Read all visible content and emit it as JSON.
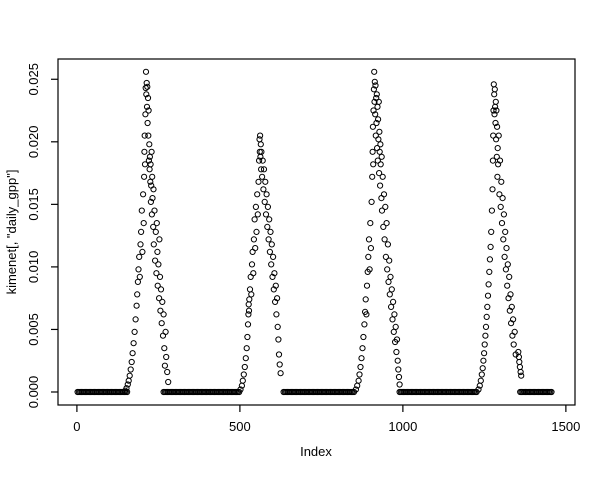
{
  "figure": {
    "background": "#ffffff",
    "foreground": "#000000"
  },
  "chart_data": {
    "type": "scatter",
    "title": "",
    "xlabel": "Index",
    "ylabel": "kimenet[, \"daily_gpp\"]",
    "series_name": "daily_gpp",
    "marker": "open-circle",
    "marker_color": "#000000",
    "grid": false,
    "legend": "none",
    "x_tick_values": [
      0,
      500,
      1000,
      1500
    ],
    "x_tick_labels": [
      "0",
      "500",
      "1000",
      "1500"
    ],
    "y_tick_values": [
      0,
      0.005,
      0.01,
      0.015,
      0.02,
      0.025
    ],
    "y_tick_labels": [
      "0.000",
      "0.005",
      "0.010",
      "0.015",
      "0.020",
      "0.025"
    ],
    "xlim": [
      -58,
      1528
    ],
    "ylim": [
      -0.00104,
      0.02662
    ],
    "zero_run_step": 4,
    "zero_runs": [
      [
        2,
        154
      ],
      [
        266,
        498
      ],
      [
        634,
        852
      ],
      [
        990,
        1228
      ],
      [
        1360,
        1456
      ]
    ],
    "points": [
      [
        148,
        0.0001
      ],
      [
        152,
        0.0003
      ],
      [
        156,
        0.0006
      ],
      [
        159,
        0.0009
      ],
      [
        162,
        0.0013
      ],
      [
        165,
        0.0018
      ],
      [
        168,
        0.0024
      ],
      [
        171,
        0.0031
      ],
      [
        174,
        0.0039
      ],
      [
        177,
        0.0048
      ],
      [
        180,
        0.0058
      ],
      [
        183,
        0.0069
      ],
      [
        185,
        0.0078
      ],
      [
        187,
        0.0088
      ],
      [
        189,
        0.0098
      ],
      [
        191,
        0.0108
      ],
      [
        193,
        0.0092
      ],
      [
        195,
        0.0118
      ],
      [
        197,
        0.0128
      ],
      [
        199,
        0.0145
      ],
      [
        201,
        0.0112
      ],
      [
        203,
        0.0158
      ],
      [
        205,
        0.0135
      ],
      [
        206,
        0.0172
      ],
      [
        207,
        0.0192
      ],
      [
        208,
        0.0205
      ],
      [
        209,
        0.0182
      ],
      [
        210,
        0.0222
      ],
      [
        211,
        0.0243
      ],
      [
        212,
        0.0256
      ],
      [
        213,
        0.0238
      ],
      [
        214,
        0.0247
      ],
      [
        215,
        0.0228
      ],
      [
        216,
        0.0244
      ],
      [
        217,
        0.0215
      ],
      [
        218,
        0.0235
      ],
      [
        219,
        0.0205
      ],
      [
        220,
        0.0225
      ],
      [
        221,
        0.0185
      ],
      [
        222,
        0.0198
      ],
      [
        223,
        0.0178
      ],
      [
        224,
        0.0188
      ],
      [
        225,
        0.0168
      ],
      [
        226,
        0.0182
      ],
      [
        227,
        0.0152
      ],
      [
        228,
        0.0165
      ],
      [
        229,
        0.0192
      ],
      [
        230,
        0.0142
      ],
      [
        231,
        0.0172
      ],
      [
        232,
        0.0155
      ],
      [
        234,
        0.0132
      ],
      [
        235,
        0.0162
      ],
      [
        236,
        0.0118
      ],
      [
        238,
        0.0145
      ],
      [
        240,
        0.0105
      ],
      [
        242,
        0.0128
      ],
      [
        244,
        0.0095
      ],
      [
        245,
        0.0135
      ],
      [
        247,
        0.0112
      ],
      [
        248,
        0.0085
      ],
      [
        250,
        0.0102
      ],
      [
        252,
        0.0075
      ],
      [
        253,
        0.0122
      ],
      [
        255,
        0.0092
      ],
      [
        256,
        0.0065
      ],
      [
        258,
        0.0082
      ],
      [
        260,
        0.0055
      ],
      [
        262,
        0.0072
      ],
      [
        264,
        0.0045
      ],
      [
        266,
        0.0062
      ],
      [
        268,
        0.0035
      ],
      [
        270,
        0.0021
      ],
      [
        272,
        0.0048
      ],
      [
        274,
        0.0028
      ],
      [
        277,
        0.0016
      ],
      [
        280,
        0.0008
      ],
      [
        502,
        0.0002
      ],
      [
        506,
        0.0005
      ],
      [
        509,
        0.0009
      ],
      [
        512,
        0.0014
      ],
      [
        515,
        0.002
      ],
      [
        518,
        0.0027
      ],
      [
        521,
        0.0035
      ],
      [
        523,
        0.0044
      ],
      [
        525,
        0.0054
      ],
      [
        526,
        0.0062
      ],
      [
        527,
        0.007
      ],
      [
        528,
        0.0065
      ],
      [
        529,
        0.0074
      ],
      [
        531,
        0.0082
      ],
      [
        533,
        0.0092
      ],
      [
        535,
        0.0078
      ],
      [
        537,
        0.0102
      ],
      [
        539,
        0.0112
      ],
      [
        541,
        0.0095
      ],
      [
        543,
        0.0122
      ],
      [
        545,
        0.0138
      ],
      [
        547,
        0.0115
      ],
      [
        549,
        0.0148
      ],
      [
        551,
        0.0128
      ],
      [
        553,
        0.0158
      ],
      [
        555,
        0.0142
      ],
      [
        557,
        0.0168
      ],
      [
        559,
        0.0185
      ],
      [
        560,
        0.0202
      ],
      [
        561,
        0.0192
      ],
      [
        562,
        0.0205
      ],
      [
        563,
        0.0188
      ],
      [
        564,
        0.0198
      ],
      [
        565,
        0.0178
      ],
      [
        566,
        0.0192
      ],
      [
        568,
        0.0172
      ],
      [
        570,
        0.0185
      ],
      [
        572,
        0.0162
      ],
      [
        574,
        0.0178
      ],
      [
        576,
        0.0152
      ],
      [
        578,
        0.0168
      ],
      [
        580,
        0.0142
      ],
      [
        582,
        0.0158
      ],
      [
        584,
        0.0132
      ],
      [
        586,
        0.0148
      ],
      [
        588,
        0.0122
      ],
      [
        590,
        0.0138
      ],
      [
        592,
        0.0112
      ],
      [
        594,
        0.0128
      ],
      [
        596,
        0.0102
      ],
      [
        598,
        0.0118
      ],
      [
        600,
        0.0092
      ],
      [
        602,
        0.0108
      ],
      [
        604,
        0.0082
      ],
      [
        606,
        0.0095
      ],
      [
        608,
        0.0072
      ],
      [
        610,
        0.0085
      ],
      [
        612,
        0.0062
      ],
      [
        614,
        0.0075
      ],
      [
        616,
        0.0052
      ],
      [
        618,
        0.0042
      ],
      [
        620,
        0.003
      ],
      [
        622,
        0.0022
      ],
      [
        625,
        0.0015
      ],
      [
        856,
        0.0002
      ],
      [
        860,
        0.0005
      ],
      [
        864,
        0.0009
      ],
      [
        867,
        0.0014
      ],
      [
        870,
        0.002
      ],
      [
        873,
        0.0027
      ],
      [
        876,
        0.0035
      ],
      [
        879,
        0.0044
      ],
      [
        882,
        0.0054
      ],
      [
        884,
        0.0064
      ],
      [
        886,
        0.0074
      ],
      [
        888,
        0.0062
      ],
      [
        890,
        0.0085
      ],
      [
        892,
        0.0096
      ],
      [
        894,
        0.0108
      ],
      [
        896,
        0.0122
      ],
      [
        898,
        0.0098
      ],
      [
        900,
        0.0135
      ],
      [
        902,
        0.0115
      ],
      [
        904,
        0.0152
      ],
      [
        906,
        0.0172
      ],
      [
        907,
        0.0192
      ],
      [
        908,
        0.0212
      ],
      [
        909,
        0.0182
      ],
      [
        910,
        0.0225
      ],
      [
        911,
        0.0242
      ],
      [
        912,
        0.0256
      ],
      [
        913,
        0.0232
      ],
      [
        914,
        0.0248
      ],
      [
        915,
        0.0222
      ],
      [
        916,
        0.0245
      ],
      [
        917,
        0.0205
      ],
      [
        918,
        0.0235
      ],
      [
        919,
        0.0215
      ],
      [
        920,
        0.0238
      ],
      [
        921,
        0.0195
      ],
      [
        922,
        0.0228
      ],
      [
        923,
        0.0185
      ],
      [
        924,
        0.0218
      ],
      [
        925,
        0.0202
      ],
      [
        926,
        0.0232
      ],
      [
        927,
        0.0175
      ],
      [
        928,
        0.0208
      ],
      [
        929,
        0.0192
      ],
      [
        930,
        0.0165
      ],
      [
        931,
        0.0198
      ],
      [
        932,
        0.0182
      ],
      [
        934,
        0.0155
      ],
      [
        935,
        0.0188
      ],
      [
        936,
        0.0145
      ],
      [
        938,
        0.0172
      ],
      [
        940,
        0.0132
      ],
      [
        942,
        0.0158
      ],
      [
        944,
        0.0122
      ],
      [
        946,
        0.0148
      ],
      [
        948,
        0.0108
      ],
      [
        950,
        0.0135
      ],
      [
        952,
        0.0098
      ],
      [
        954,
        0.0118
      ],
      [
        956,
        0.0088
      ],
      [
        958,
        0.0105
      ],
      [
        960,
        0.0078
      ],
      [
        962,
        0.0092
      ],
      [
        964,
        0.0068
      ],
      [
        966,
        0.0082
      ],
      [
        968,
        0.0058
      ],
      [
        970,
        0.0072
      ],
      [
        972,
        0.0048
      ],
      [
        974,
        0.0062
      ],
      [
        976,
        0.004
      ],
      [
        978,
        0.0052
      ],
      [
        980,
        0.0032
      ],
      [
        982,
        0.0042
      ],
      [
        984,
        0.0025
      ],
      [
        986,
        0.0018
      ],
      [
        988,
        0.0012
      ],
      [
        990,
        0.0006
      ],
      [
        1232,
        0.0002
      ],
      [
        1236,
        0.0005
      ],
      [
        1239,
        0.0009
      ],
      [
        1242,
        0.0014
      ],
      [
        1245,
        0.0019
      ],
      [
        1247,
        0.0025
      ],
      [
        1249,
        0.0031
      ],
      [
        1251,
        0.0038
      ],
      [
        1253,
        0.0045
      ],
      [
        1255,
        0.0052
      ],
      [
        1257,
        0.006
      ],
      [
        1259,
        0.0068
      ],
      [
        1261,
        0.0077
      ],
      [
        1263,
        0.0086
      ],
      [
        1265,
        0.0096
      ],
      [
        1267,
        0.0106
      ],
      [
        1269,
        0.0116
      ],
      [
        1271,
        0.0128
      ],
      [
        1273,
        0.0145
      ],
      [
        1275,
        0.0162
      ],
      [
        1276,
        0.0185
      ],
      [
        1277,
        0.0205
      ],
      [
        1278,
        0.0225
      ],
      [
        1279,
        0.0246
      ],
      [
        1280,
        0.0238
      ],
      [
        1281,
        0.0222
      ],
      [
        1282,
        0.0242
      ],
      [
        1283,
        0.0228
      ],
      [
        1284,
        0.0215
      ],
      [
        1285,
        0.0232
      ],
      [
        1286,
        0.0202
      ],
      [
        1287,
        0.0225
      ],
      [
        1288,
        0.0188
      ],
      [
        1289,
        0.0212
      ],
      [
        1290,
        0.0172
      ],
      [
        1291,
        0.0195
      ],
      [
        1292,
        0.0182
      ],
      [
        1294,
        0.0205
      ],
      [
        1296,
        0.0158
      ],
      [
        1298,
        0.0185
      ],
      [
        1300,
        0.0148
      ],
      [
        1302,
        0.0168
      ],
      [
        1304,
        0.0135
      ],
      [
        1306,
        0.0155
      ],
      [
        1308,
        0.0122
      ],
      [
        1310,
        0.0142
      ],
      [
        1312,
        0.0108
      ],
      [
        1314,
        0.0128
      ],
      [
        1316,
        0.0098
      ],
      [
        1318,
        0.0115
      ],
      [
        1320,
        0.0085
      ],
      [
        1322,
        0.0102
      ],
      [
        1324,
        0.0075
      ],
      [
        1326,
        0.0092
      ],
      [
        1328,
        0.0065
      ],
      [
        1330,
        0.0078
      ],
      [
        1332,
        0.0055
      ],
      [
        1334,
        0.0068
      ],
      [
        1336,
        0.0045
      ],
      [
        1338,
        0.0058
      ],
      [
        1340,
        0.0038
      ],
      [
        1343,
        0.0048
      ],
      [
        1346,
        0.003
      ],
      [
        1354,
        0.0032
      ],
      [
        1356,
        0.0028
      ],
      [
        1357,
        0.0024
      ],
      [
        1359,
        0.002
      ],
      [
        1361,
        0.0016
      ],
      [
        1363,
        0.0013
      ]
    ]
  }
}
